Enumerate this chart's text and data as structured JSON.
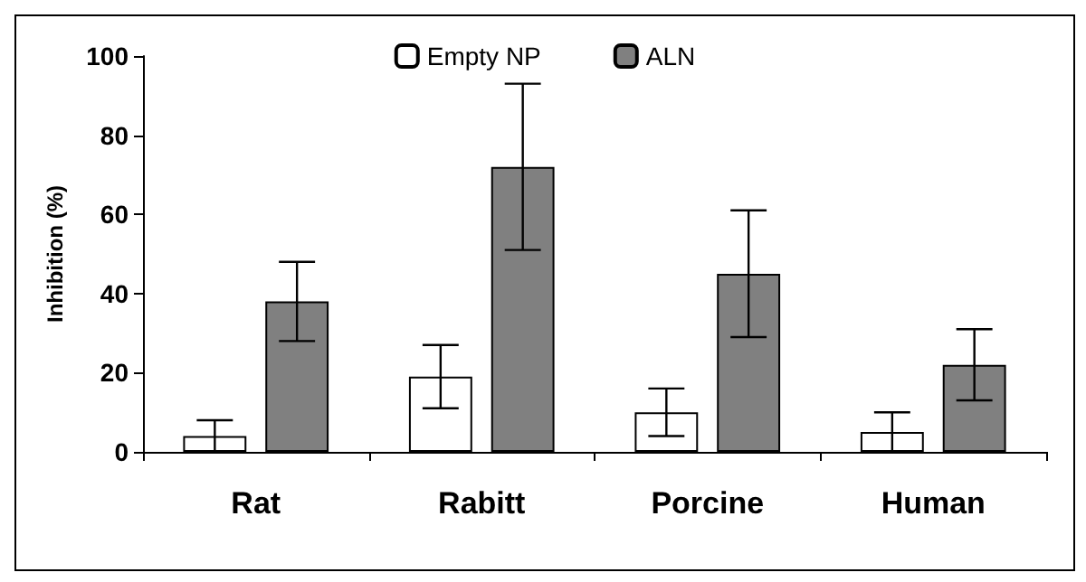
{
  "chart_data": {
    "type": "bar",
    "ylabel": "Inhibition (%)",
    "categories": [
      "Rat",
      "Rabitt",
      "Porcine",
      "Human"
    ],
    "series": [
      {
        "name": "Empty NP",
        "color": "#ffffff",
        "values": [
          4,
          19,
          10,
          5
        ],
        "errors": [
          4,
          8,
          6,
          5
        ]
      },
      {
        "name": "ALN",
        "color": "#808080",
        "values": [
          38,
          72,
          45,
          22
        ],
        "errors": [
          10,
          21,
          16,
          9
        ]
      }
    ],
    "ylim": [
      0,
      100
    ],
    "yticks": [
      0,
      20,
      40,
      60,
      80,
      100
    ],
    "grid": false,
    "legend": "top"
  }
}
